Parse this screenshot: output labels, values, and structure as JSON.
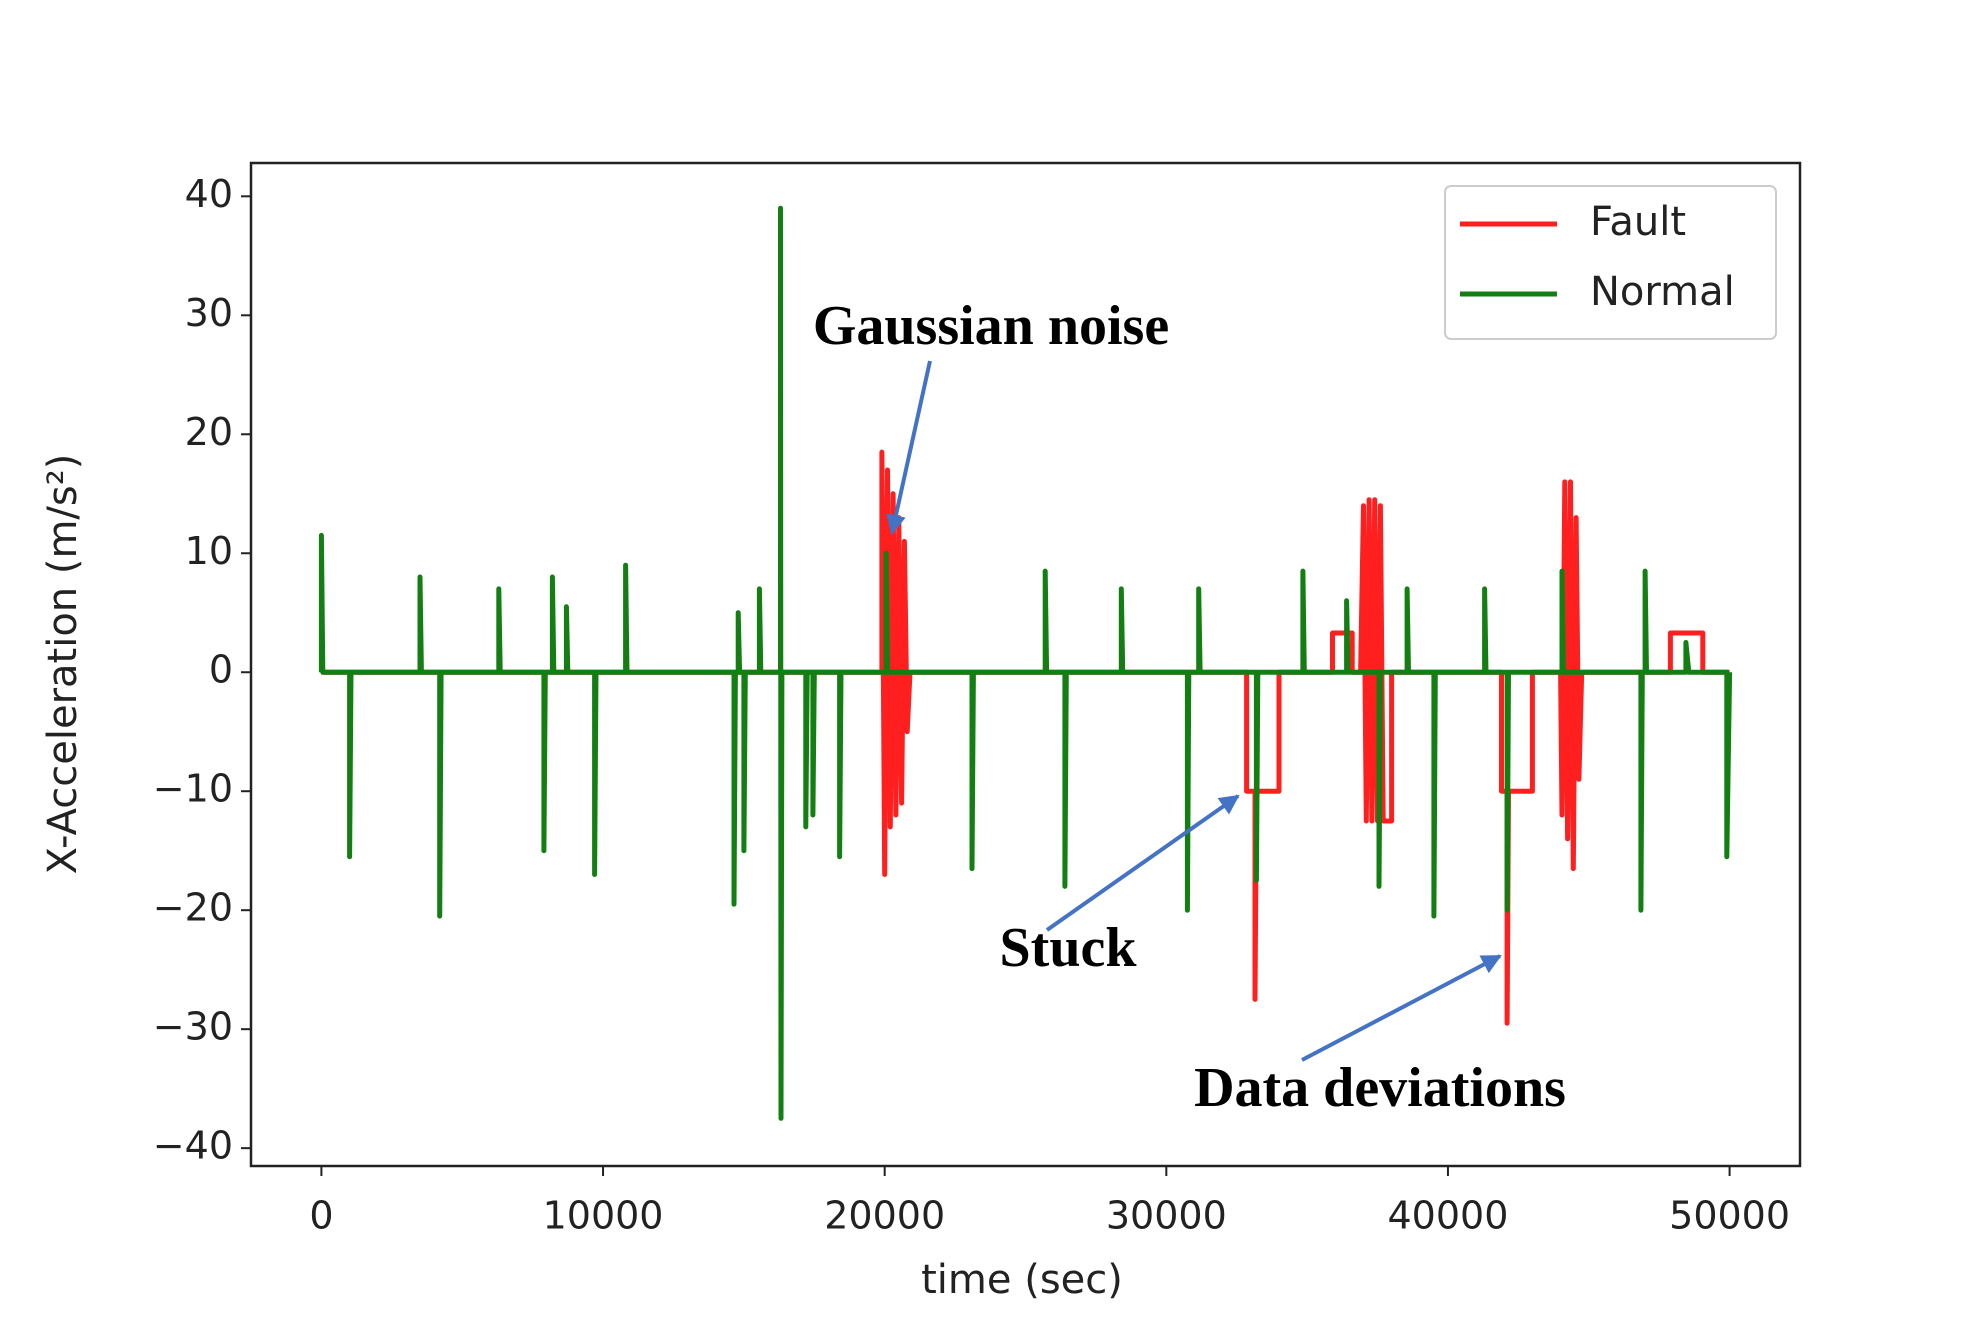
{
  "chart_data": {
    "type": "line",
    "xlabel": "time (sec)",
    "ylabel": "X-Acceleration (m/s²)",
    "xlim": [
      -2500,
      52500
    ],
    "ylim": [
      -41.5,
      42.8
    ],
    "xticks": [
      0,
      10000,
      20000,
      30000,
      40000,
      50000
    ],
    "yticks": [
      {
        "value": -40,
        "label": "−40"
      },
      {
        "value": -30,
        "label": "−30"
      },
      {
        "value": -20,
        "label": "−20"
      },
      {
        "value": -10,
        "label": "−10"
      },
      0,
      10,
      20,
      30,
      40
    ],
    "legend": "upper right",
    "annotations": [
      "Gaussian noise",
      "Stuck",
      "Data deviations"
    ],
    "series": [
      {
        "name": "Fault",
        "color": "#ff1f1f",
        "x": [
          0,
          19900,
          19900,
          20000,
          20100,
          20200,
          20300,
          20400,
          20500,
          20600,
          20700,
          20800,
          20900,
          32850,
          32850,
          33150,
          33150,
          33200,
          34000,
          34000,
          35900,
          35900,
          36600,
          36600,
          36900,
          37000,
          37100,
          37200,
          37300,
          37400,
          37500,
          37600,
          37700,
          38000,
          38000,
          41900,
          41900,
          42100,
          42100,
          42150,
          43000,
          43000,
          44000,
          44050,
          44150,
          44250,
          44350,
          44450,
          44550,
          44650,
          44750,
          47900,
          47900,
          49050,
          49050,
          50000
        ],
        "values": [
          0,
          0,
          18.5,
          -17,
          17,
          -13,
          15,
          -12,
          13,
          -11,
          11,
          -5,
          0,
          0,
          -10,
          -10,
          -27.5,
          -10,
          -10,
          0,
          0,
          3.3,
          3.3,
          0,
          0,
          14,
          -12.5,
          14.5,
          -12.5,
          14.5,
          -12.5,
          14,
          -12.5,
          -12.5,
          0,
          0,
          -10,
          -10,
          -29.5,
          -10,
          -10,
          0,
          0,
          -12,
          16,
          -14,
          16,
          -16.5,
          13,
          -9,
          0,
          0,
          3.3,
          3.3,
          0,
          0
        ]
      },
      {
        "name": "Normal",
        "color": "#137f13",
        "x": [
          0,
          0,
          50,
          1000,
          1000,
          1050,
          3500,
          3500,
          3550,
          4200,
          4200,
          4250,
          6300,
          6300,
          6350,
          7900,
          7900,
          7950,
          8200,
          8200,
          8250,
          8700,
          8700,
          8750,
          9700,
          9700,
          9750,
          10800,
          10800,
          10850,
          14650,
          14650,
          14700,
          14800,
          14800,
          14850,
          15000,
          15000,
          15050,
          15550,
          15550,
          15600,
          16300,
          16300,
          16320,
          16350,
          17200,
          17200,
          17250,
          17450,
          17450,
          17500,
          18400,
          18400,
          18450,
          20050,
          20050,
          20100,
          23100,
          23100,
          23150,
          25700,
          25700,
          25750,
          26400,
          26400,
          26450,
          28400,
          28400,
          28450,
          30750,
          30750,
          30800,
          31150,
          31150,
          31200,
          33200,
          33200,
          33250,
          34850,
          34850,
          34900,
          36400,
          36400,
          36450,
          37550,
          37550,
          37600,
          38550,
          38550,
          38600,
          39500,
          39500,
          39550,
          41300,
          41300,
          41350,
          42100,
          42100,
          42150,
          44050,
          44050,
          44100,
          46850,
          46850,
          46900,
          47000,
          47000,
          47050,
          48450,
          48450,
          48550,
          49900,
          49900,
          50000
        ],
        "values": [
          0,
          11.5,
          0,
          0,
          -15.5,
          0,
          0,
          8,
          0,
          0,
          -20.5,
          0,
          0,
          7,
          0,
          0,
          -15,
          0,
          0,
          8,
          0,
          0,
          5.5,
          0,
          0,
          -17,
          0,
          0,
          9,
          0,
          0,
          -19.5,
          0,
          0,
          5,
          0,
          0,
          -15,
          0,
          0,
          7,
          0,
          0,
          39,
          -37.5,
          0,
          0,
          -13,
          0,
          0,
          -12,
          0,
          0,
          -15.5,
          0,
          0,
          10,
          0,
          0,
          -16.5,
          0,
          0,
          8.5,
          0,
          0,
          -18,
          0,
          0,
          7,
          0,
          0,
          -20,
          0,
          0,
          7,
          0,
          0,
          -17.5,
          0,
          0,
          8.5,
          0,
          0,
          6,
          0,
          0,
          -18,
          0,
          0,
          7,
          0,
          0,
          -20.5,
          0,
          0,
          7,
          0,
          0,
          -20,
          0,
          0,
          8.5,
          0,
          0,
          -20,
          0,
          0,
          8.5,
          0,
          0,
          2.5,
          0,
          0,
          -15.5,
          0
        ]
      }
    ]
  }
}
